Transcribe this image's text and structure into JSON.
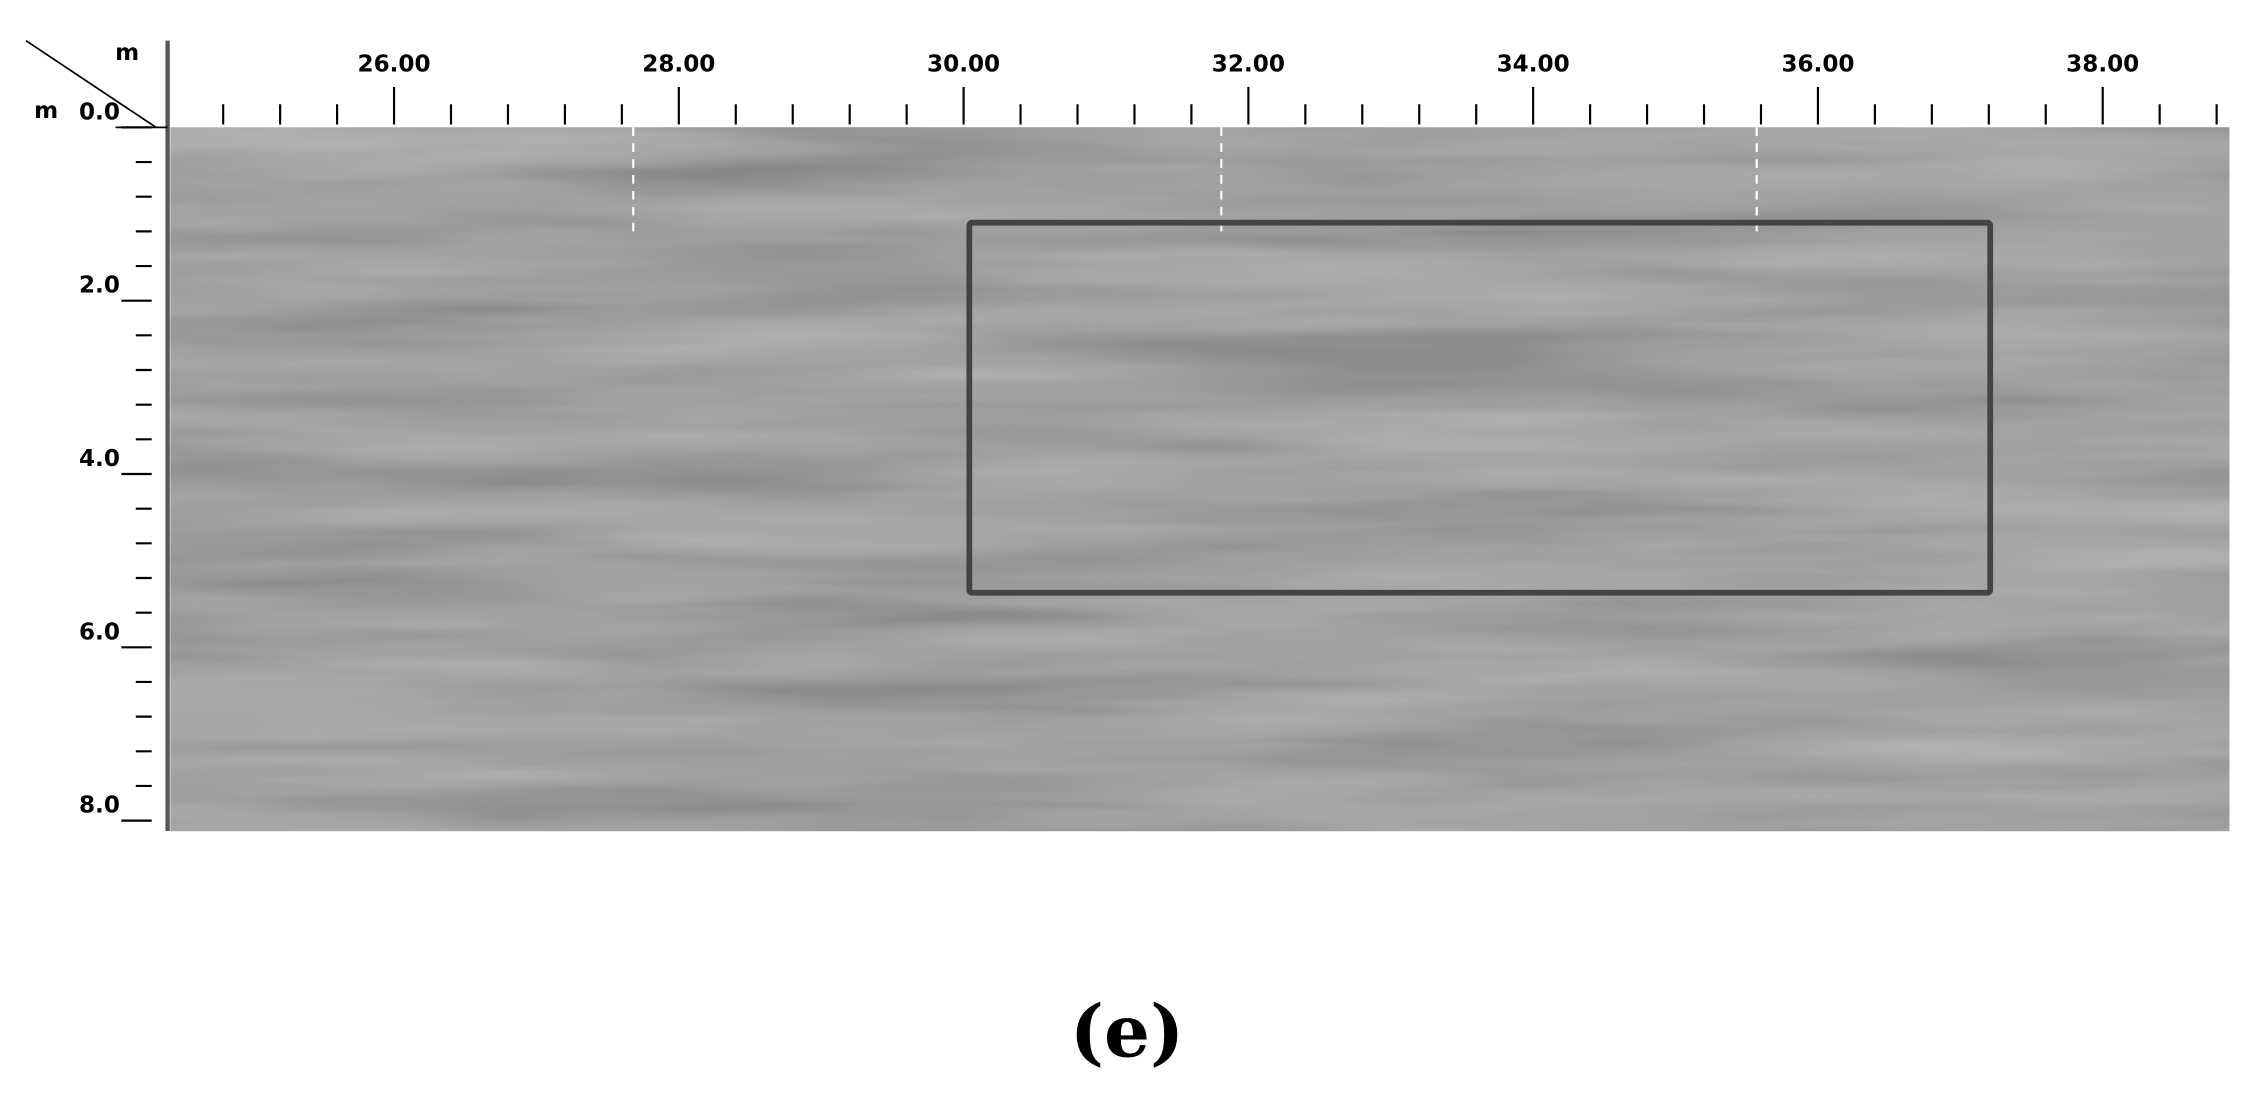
{
  "chart_data": {
    "type": "radargram",
    "x_unit": "m",
    "y_unit": "m",
    "xlim": [
      24.43,
      38.89
    ],
    "ylim": [
      0,
      8.12
    ],
    "xticks": [
      {
        "value": 26,
        "label": "26.00"
      },
      {
        "value": 28,
        "label": "28.00"
      },
      {
        "value": 30,
        "label": "30.00"
      },
      {
        "value": 32,
        "label": "32.00"
      },
      {
        "value": 34,
        "label": "34.00"
      },
      {
        "value": 36,
        "label": "36.00"
      },
      {
        "value": 38,
        "label": "38.00"
      }
    ],
    "xminorticks": [
      24.8,
      25.2,
      25.6,
      26.4,
      26.8,
      27.2,
      27.6,
      28.4,
      28.8,
      29.2,
      29.6,
      30.4,
      30.8,
      31.2,
      31.6,
      32.4,
      32.8,
      33.2,
      33.6,
      34.4,
      34.8,
      35.2,
      35.6,
      36.4,
      36.8,
      37.2,
      37.6,
      38.4,
      38.8
    ],
    "yticks": [
      {
        "value": 0,
        "label": "0.0"
      },
      {
        "value": 2,
        "label": "2.0"
      },
      {
        "value": 4,
        "label": "4.0"
      },
      {
        "value": 6,
        "label": "6.0"
      },
      {
        "value": 8,
        "label": "8.0"
      }
    ],
    "yminorticks": [
      0.4,
      0.8,
      1.2,
      1.6,
      2.4,
      2.8,
      3.2,
      3.6,
      4.4,
      4.8,
      5.2,
      5.6,
      6.4,
      6.8,
      7.2,
      7.6
    ],
    "markers": [
      27.68,
      31.81,
      35.57
    ],
    "highlight_box": {
      "x": [
        30.04,
        37.21
      ],
      "y": [
        1.1,
        5.37
      ]
    },
    "caption": "(e)"
  }
}
